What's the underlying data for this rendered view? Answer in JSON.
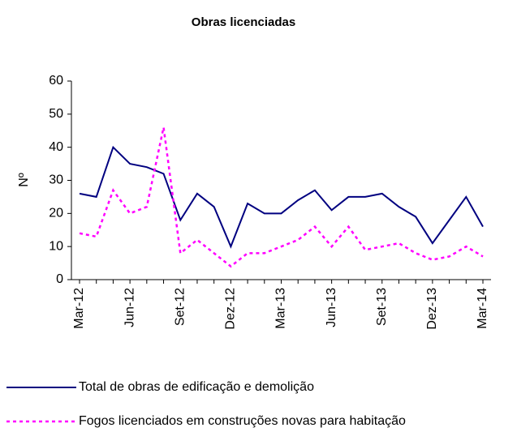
{
  "chart_data": {
    "type": "line",
    "title": "Obras licenciadas",
    "y_label": "Nº",
    "categories": [
      "Mar-12",
      null,
      null,
      "Jun-12",
      null,
      null,
      "Set-12",
      null,
      null,
      "Dez-12",
      null,
      null,
      "Mar-13",
      null,
      null,
      "Jun-13",
      null,
      null,
      "Set-13",
      null,
      null,
      "Dez-13",
      null,
      null,
      "Mar-14"
    ],
    "series": [
      {
        "name": "Total de obras de edificação e demolição",
        "color": "#000080",
        "dashed": false,
        "values": [
          26,
          25,
          40,
          35,
          34,
          32,
          18,
          26,
          22,
          10,
          23,
          20,
          20,
          24,
          27,
          21,
          25,
          25,
          26,
          22,
          19,
          11,
          18,
          25,
          16
        ]
      },
      {
        "name": "Fogos licenciados em construções novas para habitação",
        "color": "#ff00ff",
        "dashed": true,
        "values": [
          14,
          13,
          27,
          20,
          22,
          46,
          8,
          12,
          8,
          4,
          8,
          8,
          10,
          12,
          16,
          10,
          16,
          9,
          10,
          11,
          8,
          6,
          7,
          10,
          7
        ]
      }
    ],
    "ylim": [
      0,
      60
    ],
    "yticks": [
      0,
      10,
      20,
      30,
      40,
      50,
      60
    ]
  }
}
